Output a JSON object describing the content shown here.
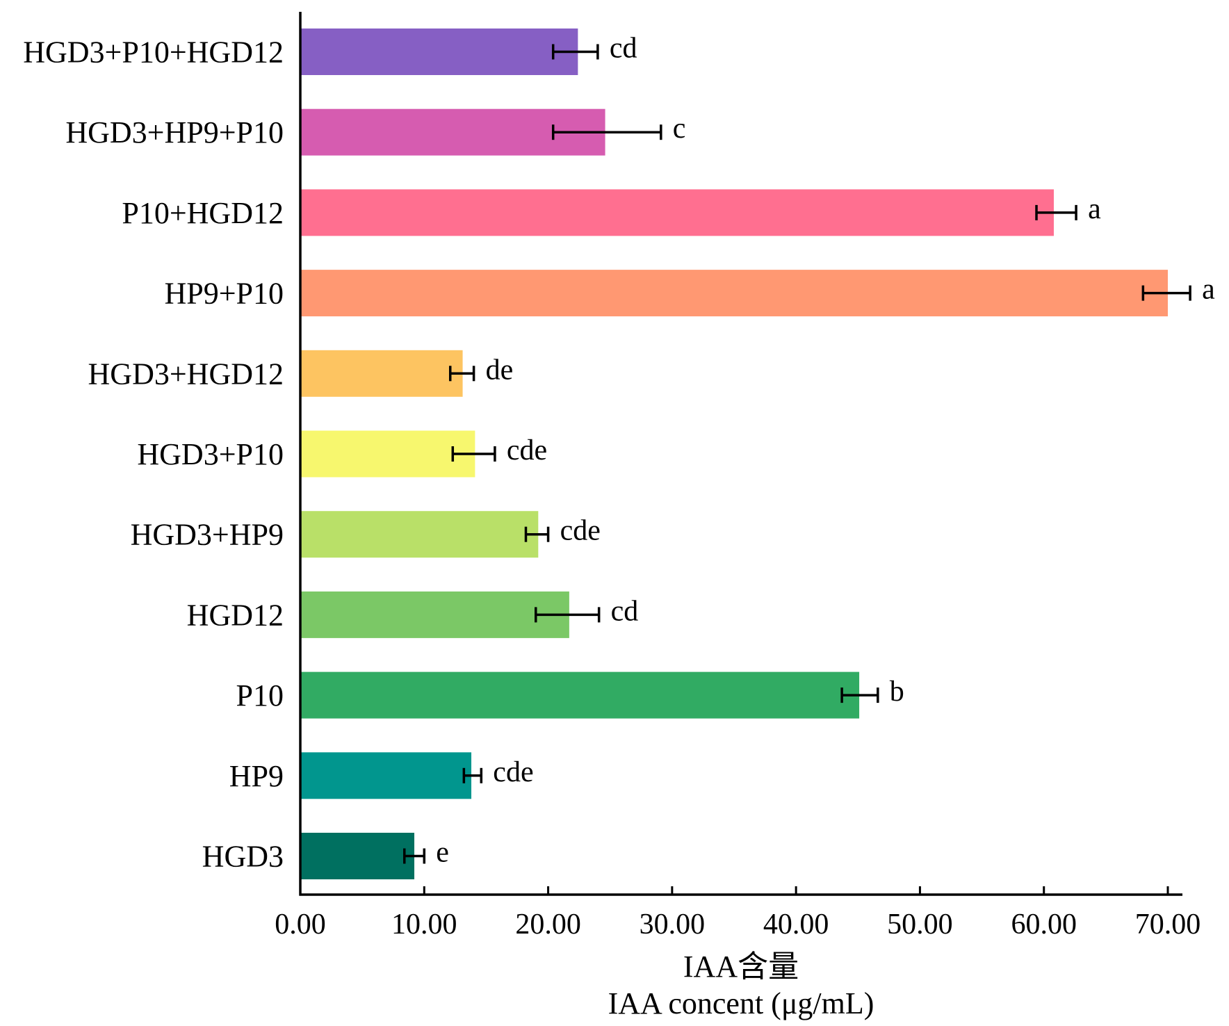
{
  "chart_data": {
    "type": "bar",
    "orientation": "horizontal",
    "title": "",
    "xlabel_lines": [
      "IAA含量",
      "IAA concent (μg/mL)"
    ],
    "ylabel": "",
    "xlim": [
      0,
      70
    ],
    "x_ticks": [
      0,
      10,
      20,
      30,
      40,
      50,
      60,
      70
    ],
    "x_tick_labels": [
      "0.00",
      "10.00",
      "20.00",
      "30.00",
      "40.00",
      "50.00",
      "60.00",
      "70.00"
    ],
    "grid": false,
    "legend": "none",
    "categories": [
      "HGD3+P10+HGD12",
      "HGD3+HP9+P10",
      "P10+HGD12",
      "HP9+P10",
      "HGD3+HGD12",
      "HGD3+P10",
      "HGD3+HP9",
      "HGD12",
      "P10",
      "HP9",
      "HGD3"
    ],
    "values": [
      22.4,
      24.6,
      60.8,
      70.0,
      13.1,
      14.1,
      19.2,
      21.7,
      45.1,
      13.8,
      9.2
    ],
    "error_low": [
      20.4,
      20.4,
      59.4,
      68.0,
      12.1,
      12.3,
      18.2,
      19.0,
      43.7,
      13.2,
      8.4
    ],
    "error_high": [
      24.0,
      29.1,
      62.6,
      71.8,
      14.0,
      15.7,
      20.0,
      24.1,
      46.6,
      14.6,
      10.0
    ],
    "significance": [
      "cd",
      "c",
      "a",
      "a",
      "de",
      "cde",
      "cde",
      "cd",
      "b",
      "cde",
      "e"
    ],
    "colors": [
      "#865FC4",
      "#D65CB0",
      "#FF6F90",
      "#FF9872",
      "#FDC461",
      "#F7F76E",
      "#B9E068",
      "#7BC866",
      "#31AB63",
      "#01968E",
      "#007060"
    ]
  }
}
